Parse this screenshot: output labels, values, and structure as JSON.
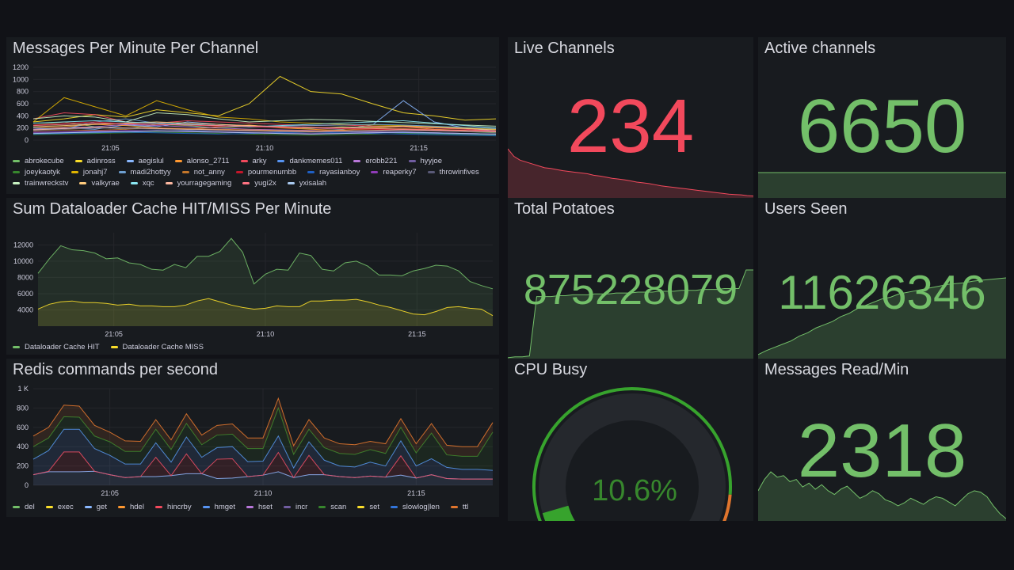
{
  "time_ticks": [
    "21:05",
    "21:10",
    "21:15"
  ],
  "panels": {
    "messages": {
      "title": "Messages Per Minute Per Channel",
      "yticks": [
        "0",
        "200",
        "400",
        "600",
        "800",
        "1000",
        "1200"
      ]
    },
    "dataloader": {
      "title": "Sum Dataloader Cache HIT/MISS Per Minute",
      "yticks": [
        "4000",
        "6000",
        "8000",
        "10000",
        "12000"
      ]
    },
    "redis": {
      "title": "Redis commands per second",
      "yticks": [
        "0",
        "200",
        "400",
        "600",
        "800",
        "1 K"
      ]
    },
    "live": {
      "title": "Live Channels",
      "value": "234",
      "color": "#f2495c"
    },
    "active": {
      "title": "Active channels",
      "value": "6650",
      "color": "#73bf69"
    },
    "potatoes": {
      "title": "Total Potatoes",
      "value": "875228079",
      "color": "#73bf69"
    },
    "users": {
      "title": "Users Seen",
      "value": "11626346",
      "color": "#73bf69"
    },
    "cpu": {
      "title": "CPU Busy",
      "value": "10.6%",
      "percent": 10.6,
      "color": "#37872d"
    },
    "msgread": {
      "title": "Messages Read/Min",
      "value": "2318",
      "color": "#73bf69"
    }
  },
  "chart_data": [
    {
      "type": "line",
      "title": "Messages Per Minute Per Channel",
      "x_minutes_from_2102_30": [
        0,
        1,
        2,
        3,
        4,
        5,
        6,
        7,
        8,
        9,
        10,
        11,
        12,
        13,
        14,
        15
      ],
      "ylim": [
        0,
        1200
      ],
      "series": [
        {
          "name": "abrokecube",
          "color": "#73bf69",
          "values": [
            250,
            300,
            220,
            180,
            260,
            240,
            200,
            230,
            210,
            190,
            220,
            200,
            180,
            160,
            140,
            120
          ]
        },
        {
          "name": "adinross",
          "color": "#fade2a",
          "values": [
            300,
            350,
            420,
            380,
            500,
            450,
            400,
            600,
            1050,
            800,
            760,
            600,
            450,
            400,
            330,
            350
          ]
        },
        {
          "name": "aegislul",
          "color": "#8ab8ff",
          "values": [
            150,
            200,
            180,
            250,
            220,
            300,
            260,
            240,
            220,
            200,
            180,
            250,
            650,
            300,
            200,
            150
          ]
        },
        {
          "name": "alonso_2711",
          "color": "#ff9830",
          "values": [
            200,
            220,
            260,
            240,
            200,
            180,
            220,
            250,
            200,
            180,
            160,
            200,
            220,
            180,
            160,
            130
          ]
        },
        {
          "name": "arky",
          "color": "#f2495c",
          "values": [
            350,
            450,
            420,
            300,
            280,
            320,
            300,
            280,
            260,
            240,
            250,
            230,
            220,
            200,
            180,
            150
          ]
        },
        {
          "name": "dankmemes011",
          "color": "#5794f2",
          "values": [
            100,
            120,
            140,
            130,
            150,
            160,
            140,
            120,
            130,
            150,
            140,
            130,
            120,
            110,
            100,
            90
          ]
        },
        {
          "name": "erobb221",
          "color": "#b877d9",
          "values": [
            180,
            200,
            220,
            260,
            240,
            220,
            200,
            180,
            170,
            160,
            150,
            140,
            130,
            120,
            110,
            100
          ]
        },
        {
          "name": "hyyjoe",
          "color": "#705da0",
          "values": [
            120,
            130,
            150,
            140,
            160,
            150,
            140,
            130,
            120,
            110,
            120,
            130,
            140,
            120,
            110,
            100
          ]
        },
        {
          "name": "joeykaotyk",
          "color": "#37872d",
          "values": [
            90,
            100,
            110,
            120,
            130,
            120,
            110,
            100,
            90,
            80,
            90,
            100,
            110,
            100,
            90,
            80
          ]
        },
        {
          "name": "jonahj7",
          "color": "#e0b400",
          "values": [
            300,
            700,
            550,
            400,
            650,
            500,
            380,
            350,
            300,
            280,
            260,
            250,
            240,
            220,
            200,
            180
          ]
        },
        {
          "name": "madi2hottyy",
          "color": "#6e9fd0",
          "values": [
            200,
            180,
            300,
            350,
            280,
            260,
            240,
            220,
            230,
            240,
            250,
            260,
            250,
            230,
            210,
            190
          ]
        },
        {
          "name": "not_anny",
          "color": "#c4762a",
          "values": [
            150,
            170,
            160,
            180,
            200,
            190,
            180,
            170,
            160,
            150,
            170,
            180,
            190,
            170,
            150,
            130
          ]
        },
        {
          "name": "pourmenumbb",
          "color": "#c4162a",
          "values": [
            250,
            280,
            300,
            270,
            260,
            250,
            230,
            220,
            210,
            200,
            190,
            180,
            170,
            160,
            150,
            140
          ]
        },
        {
          "name": "rayasianboy",
          "color": "#1f60c4",
          "values": [
            100,
            110,
            120,
            130,
            120,
            110,
            100,
            110,
            120,
            130,
            120,
            110,
            100,
            90,
            80,
            70
          ]
        },
        {
          "name": "reaperky7",
          "color": "#8f3bb8",
          "values": [
            130,
            140,
            150,
            160,
            150,
            140,
            130,
            120,
            110,
            100,
            110,
            120,
            130,
            120,
            110,
            100
          ]
        },
        {
          "name": "throwinfives",
          "color": "#5a5a78",
          "values": [
            160,
            180,
            200,
            190,
            180,
            170,
            160,
            150,
            140,
            130,
            140,
            150,
            160,
            150,
            140,
            130
          ]
        },
        {
          "name": "trainwreckstv",
          "color": "#c8f2c2",
          "values": [
            350,
            400,
            380,
            300,
            450,
            420,
            350,
            300,
            320,
            340,
            330,
            310,
            290,
            270,
            250,
            230
          ]
        },
        {
          "name": "valkyrae",
          "color": "#ffcb7d",
          "values": [
            220,
            240,
            260,
            280,
            300,
            280,
            260,
            240,
            220,
            200,
            210,
            220,
            230,
            210,
            190,
            170
          ]
        },
        {
          "name": "xqc",
          "color": "#8ae6f2",
          "values": [
            280,
            300,
            320,
            300,
            280,
            260,
            240,
            220,
            240,
            260,
            280,
            300,
            320,
            280,
            240,
            200
          ]
        },
        {
          "name": "yourragegaming",
          "color": "#fcb8a0",
          "values": [
            170,
            190,
            210,
            200,
            190,
            180,
            170,
            160,
            150,
            140,
            150,
            160,
            170,
            160,
            150,
            140
          ]
        },
        {
          "name": "yugi2x",
          "color": "#ff7383",
          "values": [
            240,
            260,
            280,
            270,
            260,
            250,
            240,
            230,
            220,
            210,
            200,
            190,
            180,
            170,
            160,
            150
          ]
        },
        {
          "name": "yxisalah",
          "color": "#a9c9f0",
          "values": [
            110,
            120,
            130,
            140,
            150,
            140,
            130,
            120,
            110,
            100,
            110,
            120,
            130,
            120,
            110,
            100
          ]
        }
      ]
    },
    {
      "type": "area",
      "title": "Sum Dataloader Cache HIT/MISS Per Minute",
      "ylim": [
        2000,
        13500
      ],
      "series": [
        {
          "name": "Dataloader Cache HIT",
          "color": "#73bf69",
          "values": [
            8500,
            10300,
            11900,
            11400,
            11300,
            11000,
            10300,
            10400,
            9800,
            9600,
            9000,
            8900,
            9600,
            9200,
            10600,
            10600,
            11200,
            12800,
            11100,
            7200,
            8400,
            9000,
            8900,
            11000,
            10700,
            9000,
            8800,
            9800,
            10000,
            9400,
            8300,
            8300,
            8200,
            8800,
            9100,
            9500,
            9400,
            8800,
            7500,
            7000,
            6600
          ]
        },
        {
          "name": "Dataloader Cache MISS",
          "color": "#fade2a",
          "values": [
            4100,
            4700,
            5000,
            5100,
            4900,
            4900,
            4800,
            4600,
            4700,
            4500,
            4500,
            4400,
            4400,
            4600,
            5100,
            5400,
            5000,
            4600,
            4300,
            4100,
            4200,
            4500,
            4400,
            4400,
            5100,
            5100,
            5200,
            5200,
            5300,
            5000,
            4600,
            4300,
            3900,
            3500,
            3400,
            3800,
            4300,
            4400,
            4200,
            4100,
            3300
          ]
        }
      ]
    },
    {
      "type": "area",
      "stacked": true,
      "title": "Redis commands per second",
      "ylim": [
        0,
        1000
      ],
      "series": [
        {
          "name": "del",
          "color": "#73bf69",
          "values": []
        },
        {
          "name": "exec",
          "color": "#fade2a",
          "values": []
        },
        {
          "name": "get",
          "color": "#8ab8ff",
          "values": [
            110,
            140,
            140,
            140,
            145,
            110,
            80,
            90,
            90,
            100,
            120,
            120,
            70,
            75,
            90,
            105,
            140,
            80,
            110,
            110,
            90,
            80,
            95,
            85,
            105,
            75,
            110,
            70,
            65,
            65,
            65
          ]
        },
        {
          "name": "hdel",
          "color": "#ff9830",
          "values": []
        },
        {
          "name": "hincrby",
          "color": "#f2495c",
          "values": [
            0,
            5,
            205,
            205,
            0,
            0,
            0,
            0,
            200,
            0,
            205,
            0,
            200,
            200,
            0,
            0,
            200,
            0,
            200,
            0,
            0,
            0,
            0,
            0,
            200,
            0,
            0,
            0,
            0,
            0,
            0
          ]
        },
        {
          "name": "hmget",
          "color": "#5794f2",
          "values": [
            160,
            215,
            235,
            235,
            235,
            200,
            140,
            130,
            150,
            140,
            175,
            170,
            120,
            125,
            155,
            145,
            170,
            100,
            140,
            150,
            110,
            110,
            145,
            115,
            155,
            125,
            165,
            115,
            100,
            100,
            90
          ]
        },
        {
          "name": "hset",
          "color": "#b877d9",
          "values": []
        },
        {
          "name": "incr",
          "color": "#705da0",
          "values": []
        },
        {
          "name": "scan",
          "color": "#37872d",
          "values": [
            130,
            130,
            130,
            125,
            130,
            140,
            130,
            130,
            140,
            130,
            140,
            130,
            130,
            130,
            135,
            130,
            290,
            140,
            130,
            130,
            130,
            130,
            130,
            130,
            140,
            135,
            265,
            130,
            135,
            135,
            395
          ]
        },
        {
          "name": "set",
          "color": "#fade2a",
          "values": []
        },
        {
          "name": "slowlog|len",
          "color": "#3274d9",
          "values": []
        },
        {
          "name": "ttl",
          "color": "#e0752d",
          "values": [
            110,
            110,
            120,
            115,
            110,
            100,
            110,
            105,
            100,
            100,
            100,
            100,
            100,
            105,
            110,
            110,
            100,
            90,
            100,
            100,
            100,
            100,
            85,
            100,
            90,
            95,
            100,
            100,
            100,
            100,
            100
          ]
        }
      ]
    }
  ],
  "sparklines": {
    "live": [
      130,
      110,
      100,
      95,
      90,
      85,
      80,
      78,
      75,
      72,
      70,
      68,
      66,
      64,
      60,
      58,
      55,
      52,
      50,
      48,
      45,
      42,
      40,
      38,
      35,
      32,
      30,
      28,
      26,
      24,
      22,
      20,
      18,
      16,
      14,
      12,
      10,
      9,
      8,
      6,
      5
    ],
    "active": [
      100,
      100,
      100,
      100,
      100,
      100,
      100,
      100,
      100,
      100
    ],
    "potatoes": [
      1,
      2,
      2,
      3,
      70,
      70,
      70,
      71,
      71,
      72,
      72,
      72,
      73,
      73,
      73,
      74,
      74,
      74,
      75,
      75,
      75,
      76,
      76,
      76,
      77,
      77,
      77,
      78,
      78,
      78,
      79,
      79,
      79,
      100,
      100
    ],
    "users": [
      5,
      10,
      14,
      18,
      22,
      28,
      32,
      38,
      42,
      46,
      52,
      56,
      62,
      66,
      70,
      74,
      76,
      80,
      82,
      84,
      86,
      88,
      90,
      92,
      93,
      94,
      96,
      97,
      98,
      99,
      100
    ],
    "msgread": [
      40,
      55,
      65,
      58,
      60,
      52,
      55,
      45,
      50,
      42,
      48,
      40,
      35,
      42,
      46,
      38,
      30,
      34,
      40,
      36,
      28,
      25,
      20,
      24,
      30,
      26,
      22,
      28,
      32,
      30,
      25,
      20,
      28,
      36,
      40,
      38,
      32,
      20,
      10,
      3
    ]
  }
}
